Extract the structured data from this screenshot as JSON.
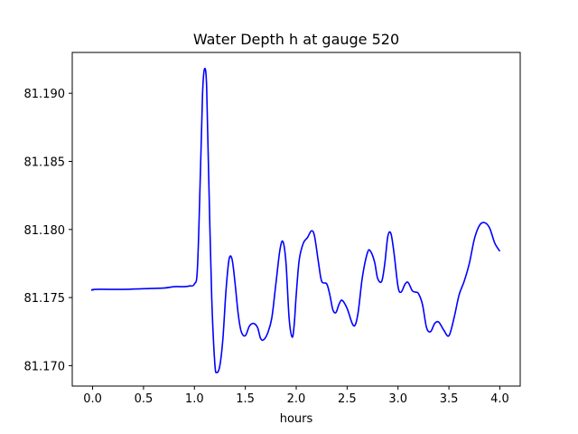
{
  "chart_data": {
    "type": "line",
    "title": "Water Depth h at gauge 520",
    "xlabel": "hours",
    "ylabel": "",
    "xlim": [
      -0.2,
      4.2
    ],
    "ylim": [
      81.1685,
      81.193
    ],
    "xticks": [
      0.0,
      0.5,
      1.0,
      1.5,
      2.0,
      2.5,
      3.0,
      3.5,
      4.0
    ],
    "xtick_labels": [
      "0.0",
      "0.5",
      "1.0",
      "1.5",
      "2.0",
      "2.5",
      "3.0",
      "3.5",
      "4.0"
    ],
    "yticks": [
      81.17,
      81.175,
      81.18,
      81.185,
      81.19
    ],
    "ytick_labels": [
      "81.170",
      "81.175",
      "81.180",
      "81.185",
      "81.190"
    ],
    "grid": false,
    "legend": "none",
    "series": [
      {
        "color": "#0000ff",
        "x": [
          0.0,
          0.02,
          0.3,
          0.5,
          0.7,
          0.8,
          0.9,
          0.95,
          1.0,
          1.03,
          1.06,
          1.08,
          1.1,
          1.12,
          1.14,
          1.17,
          1.2,
          1.22,
          1.25,
          1.28,
          1.31,
          1.34,
          1.37,
          1.4,
          1.43,
          1.46,
          1.5,
          1.54,
          1.58,
          1.62,
          1.65,
          1.68,
          1.72,
          1.76,
          1.8,
          1.84,
          1.87,
          1.9,
          1.93,
          1.96,
          1.98,
          2.0,
          2.03,
          2.07,
          2.11,
          2.15,
          2.18,
          2.22,
          2.25,
          2.3,
          2.33,
          2.36,
          2.39,
          2.42,
          2.45,
          2.5,
          2.55,
          2.58,
          2.61,
          2.65,
          2.7,
          2.73,
          2.77,
          2.8,
          2.84,
          2.87,
          2.9,
          2.93,
          2.96,
          3.0,
          3.03,
          3.07,
          3.1,
          3.14,
          3.17,
          3.2,
          3.24,
          3.28,
          3.32,
          3.36,
          3.4,
          3.45,
          3.5,
          3.55,
          3.6,
          3.65,
          3.7,
          3.75,
          3.8,
          3.85,
          3.9,
          3.95,
          4.0
        ],
        "y": [
          81.1755,
          81.1756,
          81.1756,
          81.17565,
          81.1757,
          81.1758,
          81.1758,
          81.17585,
          81.176,
          81.1772,
          81.1845,
          81.19,
          81.1918,
          81.1905,
          81.184,
          81.175,
          81.1702,
          81.1695,
          81.17,
          81.172,
          81.1755,
          81.1778,
          81.1778,
          81.176,
          81.1738,
          81.1725,
          81.1722,
          81.1729,
          81.1731,
          81.1728,
          81.172,
          81.1719,
          81.1724,
          81.1735,
          81.176,
          81.1785,
          81.1791,
          81.1775,
          81.1735,
          81.1721,
          81.173,
          81.1752,
          81.1778,
          81.179,
          81.1794,
          81.1799,
          81.1795,
          81.1775,
          81.1762,
          81.176,
          81.1752,
          81.1741,
          81.1739,
          81.1745,
          81.1748,
          81.1742,
          81.1731,
          81.173,
          81.174,
          81.1765,
          81.1783,
          81.1784,
          81.1776,
          81.1764,
          81.1762,
          81.1775,
          81.1795,
          81.1797,
          81.1783,
          81.1758,
          81.1754,
          81.176,
          81.1761,
          81.1755,
          81.1754,
          81.1753,
          81.1745,
          81.1728,
          81.1725,
          81.1731,
          81.1732,
          81.1726,
          81.1722,
          81.1735,
          81.1752,
          81.1762,
          81.1775,
          81.1793,
          81.1803,
          81.1805,
          81.1801,
          81.179,
          81.1784
        ]
      }
    ]
  }
}
